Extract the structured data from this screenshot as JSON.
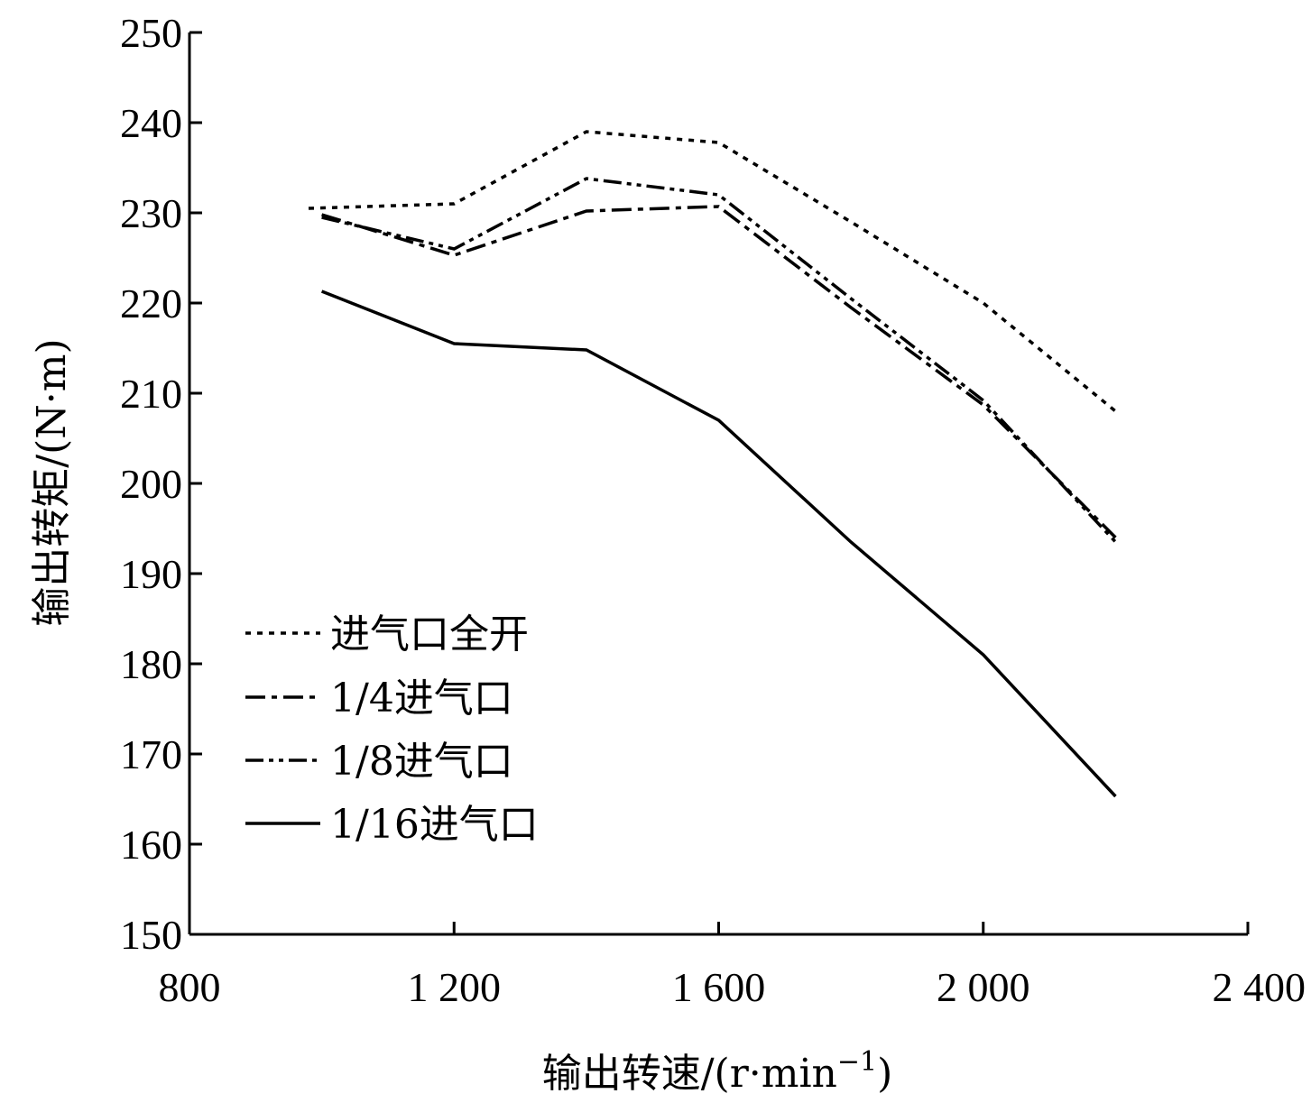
{
  "chart_data": {
    "type": "line",
    "title": "",
    "xlabel": "输出转速/(r·min",
    "xlabel_superscript": "−1",
    "xlabel_suffix": ")",
    "ylabel": "输出转矩/(N·m)",
    "xlim": [
      800,
      2400
    ],
    "ylim": [
      150,
      250
    ],
    "x_ticks": [
      800,
      1200,
      1600,
      2000,
      2400
    ],
    "x_tick_labels": [
      "800",
      "1 200",
      "1 600",
      "2 000",
      "2 400"
    ],
    "y_ticks": [
      150,
      160,
      170,
      180,
      190,
      200,
      210,
      220,
      230,
      240,
      250
    ],
    "y_tick_labels": [
      "150",
      "160",
      "170",
      "180",
      "190",
      "200",
      "210",
      "220",
      "230",
      "240",
      "250"
    ],
    "legend_position": "middle-left",
    "series": [
      {
        "name": "进气口全开",
        "dash": "dotted",
        "x": [
          980,
          1200,
          1400,
          1600,
          1800,
          2000,
          2200
        ],
        "values": [
          230.5,
          231,
          239,
          237.8,
          229,
          220,
          208
        ]
      },
      {
        "name": "1/4进气口",
        "dash": "dashdot",
        "x": [
          1000,
          1200,
          1400,
          1600,
          1800,
          2000,
          2200
        ],
        "values": [
          229.8,
          225.3,
          230.2,
          230.7,
          219.5,
          208.7,
          194
        ]
      },
      {
        "name": "1/8进气口",
        "dash": "dashdotdot",
        "x": [
          1000,
          1200,
          1400,
          1600,
          1800,
          2000,
          2200
        ],
        "values": [
          229.5,
          226,
          233.8,
          232,
          220.5,
          209.2,
          193.5
        ]
      },
      {
        "name": "1/16进气口",
        "dash": "solid",
        "x": [
          1000,
          1200,
          1400,
          1600,
          1800,
          2000,
          2200
        ],
        "values": [
          221.3,
          215.5,
          214.8,
          207,
          193.5,
          181,
          165.3
        ]
      }
    ]
  }
}
